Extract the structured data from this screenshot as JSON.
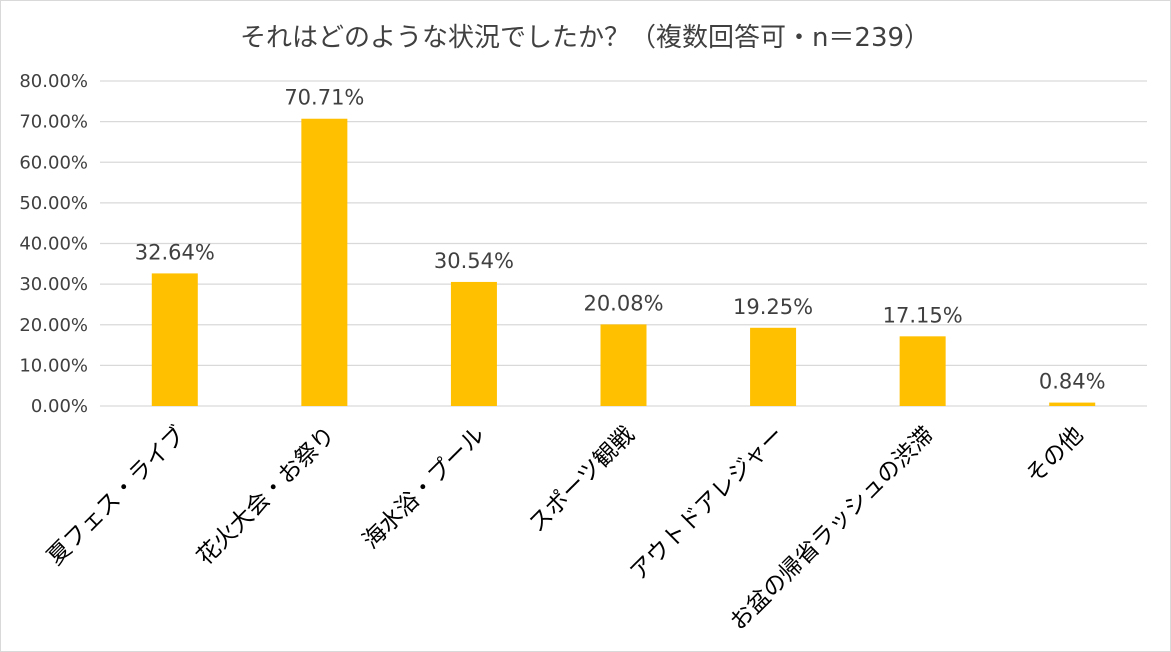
{
  "chart_data": {
    "type": "bar",
    "title": "それはどのような状況でしたか？（複数回答可・n＝239）",
    "xlabel": "",
    "ylabel": "",
    "categories": [
      "夏フェス・ライブ",
      "花火大会・お祭り",
      "海水浴・プール",
      "スポーツ観戦",
      "アウトドアレジャー",
      "お盆の帰省ラッシュの渋滞",
      "その他"
    ],
    "values": [
      32.64,
      70.71,
      30.54,
      20.08,
      19.25,
      17.15,
      0.84
    ],
    "data_labels": [
      "32.64%",
      "70.71%",
      "30.54%",
      "20.08%",
      "19.25%",
      "17.15%",
      "0.84%"
    ],
    "ylim": [
      0,
      80
    ],
    "yticks": [
      "0.00%",
      "10.00%",
      "20.00%",
      "30.00%",
      "40.00%",
      "50.00%",
      "60.00%",
      "70.00%",
      "80.00%"
    ],
    "grid": true,
    "legend": "none",
    "colors": {
      "bar": "#FFC000",
      "grid": "#d9d9d9",
      "text": "#404040"
    }
  }
}
